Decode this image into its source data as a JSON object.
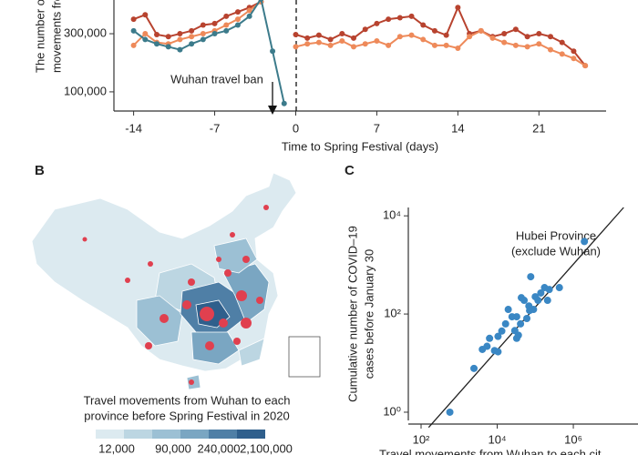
{
  "chart_data": [
    {
      "type": "line",
      "ylabel_lines": [
        "The number of re",
        "movements from"
      ],
      "xlabel": "Time to Spring Festival (days)",
      "annotation": "Wuhan travel ban",
      "x": [
        -14,
        -13,
        -12,
        -11,
        -10,
        -9,
        -8,
        -7,
        -6,
        -5,
        -4,
        -3,
        -2,
        -1,
        0,
        1,
        2,
        3,
        4,
        5,
        6,
        7,
        8,
        9,
        10,
        11,
        12,
        13,
        14,
        15,
        16,
        17,
        18,
        19,
        20,
        21,
        22,
        23,
        24,
        25
      ],
      "series": [
        {
          "color": "#b8432f",
          "values": [
            350000,
            365000,
            297000,
            290000,
            300000,
            310000,
            330000,
            335000,
            360000,
            375000,
            390000,
            410000,
            null,
            null,
            297000,
            285000,
            295000,
            280000,
            300000,
            285000,
            315000,
            335000,
            350000,
            355000,
            360000,
            330000,
            310000,
            295000,
            390000,
            300000,
            310000,
            290000,
            300000,
            315000,
            290000,
            300000,
            290000,
            270000,
            240000,
            190000
          ]
        },
        {
          "color": "#ee8a5a",
          "values": [
            260000,
            300000,
            270000,
            265000,
            280000,
            290000,
            300000,
            310000,
            330000,
            350000,
            380000,
            410000,
            null,
            null,
            255000,
            265000,
            270000,
            260000,
            275000,
            255000,
            265000,
            275000,
            260000,
            290000,
            295000,
            280000,
            260000,
            260000,
            250000,
            290000,
            310000,
            285000,
            270000,
            260000,
            255000,
            265000,
            245000,
            230000,
            215000,
            190000
          ]
        },
        {
          "color": "#3c7b8b",
          "values": [
            310000,
            280000,
            265000,
            255000,
            245000,
            265000,
            280000,
            300000,
            310000,
            330000,
            360000,
            420000,
            240000,
            60000,
            null,
            null,
            null,
            null,
            null,
            null,
            null,
            null,
            null,
            null,
            null,
            null,
            null,
            null,
            null,
            null,
            null,
            null,
            null,
            null,
            null,
            null,
            null,
            null,
            null,
            null
          ]
        }
      ],
      "xlim": [
        -15.7,
        26.8
      ],
      "xticks": [
        -14,
        -7,
        0,
        7,
        14,
        21
      ],
      "ylim": [
        34000,
        416000
      ],
      "yticks": [
        {
          "value": 100000,
          "label": "100,000"
        },
        {
          "value": 300000,
          "label": "300,000"
        }
      ]
    },
    {
      "type": "map",
      "panel": "B",
      "legend_title_lines": [
        "Travel movements from Wuhan to each",
        "province before Spring Festival in 2020"
      ],
      "colors": [
        "#dceaf0",
        "#bcd6e2",
        "#9cc0d4",
        "#7aa6c2",
        "#4f7fa6",
        "#2f5f8c"
      ],
      "ticks": [
        {
          "value": 12000,
          "label": "12,000"
        },
        {
          "value": 90000,
          "label": "90,000"
        },
        {
          "value": 240000,
          "label": "240,000"
        },
        {
          "value": 2100000,
          "label": "2,100,000"
        }
      ]
    },
    {
      "type": "scatter",
      "panel": "C",
      "log": true,
      "ylabel_lines": [
        "Cumulative number of COVID–19",
        "cases before January 30"
      ],
      "xlabel": "Travel movements from Wuhan to each cit",
      "annotation_lines": [
        "Hubei Province",
        "(exclude Wuhan)"
      ],
      "color": "#3a87c4",
      "x": [
        570,
        2450,
        4070,
        6300,
        5400,
        8500,
        10500,
        13200,
        16600,
        19500,
        24500,
        29000,
        32500,
        36000,
        41000,
        43000,
        51000,
        60000,
        68000,
        76000,
        90000,
        100000,
        118000,
        140000,
        175000,
        210000,
        233000,
        430000,
        1950000,
        71000,
        32500,
        10500
      ],
      "values": [
        1,
        7.8,
        19,
        32,
        22,
        18,
        17,
        45,
        63,
        124,
        88,
        46,
        32,
        37,
        63,
        215,
        190,
        81,
        146,
        575,
        124,
        225,
        190,
        268,
        345,
        190,
        316,
        345,
        3000,
        118,
        88,
        35
      ],
      "fit_line": {
        "x": [
          158,
          21000000
        ],
        "y": [
          0.49,
          14800
        ]
      },
      "xlim": [
        100,
        50000000
      ],
      "ylim": [
        0.68,
        14800
      ],
      "xticks": [
        {
          "value": 100,
          "label": "10²"
        },
        {
          "value": 10000,
          "label": "10⁴"
        },
        {
          "value": 1000000,
          "label": "10⁶"
        }
      ],
      "yticks": [
        {
          "value": 1,
          "label": "10⁰"
        },
        {
          "value": 100,
          "label": "10²"
        },
        {
          "value": 10000,
          "label": "10⁴"
        }
      ]
    }
  ]
}
